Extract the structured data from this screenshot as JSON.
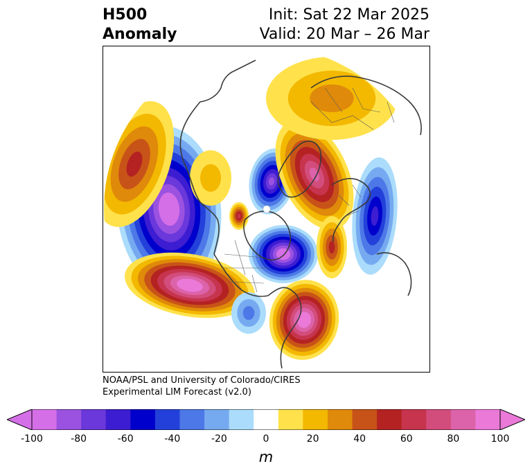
{
  "title": {
    "left_line1": "H500",
    "left_line2": "Anomaly",
    "right_line1": "Init: Sat 22 Mar 2025",
    "right_line2": "Valid: 20 Mar – 26 Mar"
  },
  "credit": {
    "line1": "NOAA/PSL and University of Colorado/CIRES",
    "line2": "Experimental LIM Forecast (v2.0)"
  },
  "colorbar": {
    "unit": "m",
    "ticks": [
      "-100",
      "-80",
      "-60",
      "-40",
      "-20",
      "0",
      "20",
      "40",
      "60",
      "80",
      "100"
    ],
    "levels": [
      -100,
      -90,
      -80,
      -70,
      -60,
      -50,
      -40,
      -30,
      -20,
      -10,
      10,
      20,
      30,
      40,
      50,
      60,
      70,
      80,
      90,
      100
    ],
    "colors": [
      "#d56fe8",
      "#9b52e0",
      "#6a38db",
      "#3d1dd1",
      "#0000cc",
      "#2341da",
      "#4d78e7",
      "#76aaf0",
      "#abdcfb",
      "#ffffff",
      "#ffe24b",
      "#f3b800",
      "#df8a0a",
      "#c85318",
      "#b42222",
      "#c6344e",
      "#d24d7b",
      "#dc63a9",
      "#ea79d8"
    ],
    "extend": "both"
  },
  "map": {
    "projection": "north polar stereographic",
    "field": "500 hPa geopotential height anomaly",
    "features": [
      {
        "name": "north-pacific-negative",
        "min_value": -100
      },
      {
        "name": "eastern-pacific-positive",
        "max_value": 100
      },
      {
        "name": "hudson-bay-negative",
        "min_value": -100
      },
      {
        "name": "polar-negative",
        "min_value": -80
      },
      {
        "name": "small-arctic-positive",
        "max_value": 60
      },
      {
        "name": "siberia-positive",
        "max_value": 80
      },
      {
        "name": "western-atlantic-positive",
        "max_value": 100
      },
      {
        "name": "north-atlantic-negative",
        "min_value": -60
      }
    ]
  }
}
